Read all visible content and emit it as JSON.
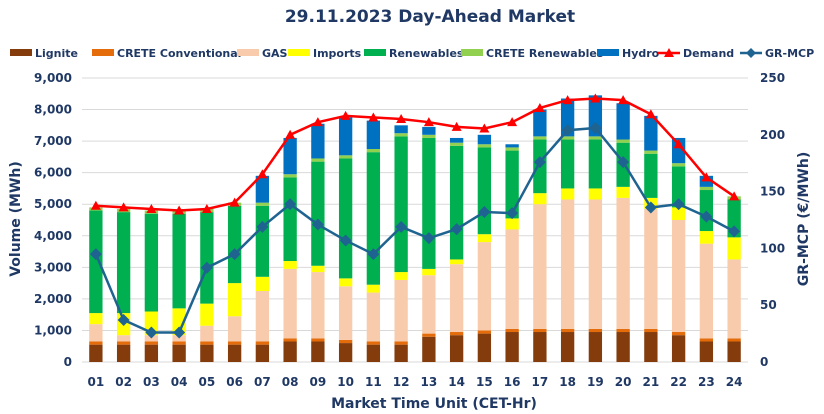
{
  "chart_data": {
    "type": "bar",
    "title": "29.11.2023  Day-Ahead Market",
    "xlabel": "Market Time Unit (CET-Hr)",
    "ylabel": "Volume (MWh)",
    "y2label": "GR-MCP (€/MWh)",
    "ylim": [
      0,
      9000
    ],
    "y2lim": [
      0,
      250
    ],
    "yticks": [
      "0",
      "1,000",
      "2,000",
      "3,000",
      "4,000",
      "5,000",
      "6,000",
      "7,000",
      "8,000",
      "9,000"
    ],
    "y2ticks": [
      "0",
      "50",
      "100",
      "150",
      "200",
      "250"
    ],
    "categories": [
      "01",
      "02",
      "03",
      "04",
      "05",
      "06",
      "07",
      "08",
      "09",
      "10",
      "11",
      "12",
      "13",
      "14",
      "15",
      "16",
      "17",
      "18",
      "19",
      "20",
      "21",
      "22",
      "23",
      "24"
    ],
    "series": [
      {
        "name": "Lignite",
        "kind": "bar",
        "color": "#843c0c",
        "values": [
          550,
          550,
          550,
          550,
          550,
          550,
          550,
          650,
          650,
          600,
          550,
          550,
          800,
          850,
          900,
          950,
          950,
          950,
          950,
          950,
          950,
          850,
          650,
          650
        ]
      },
      {
        "name": "CRETE Conventional",
        "kind": "bar",
        "color": "#e46c0a",
        "values": [
          100,
          100,
          100,
          100,
          100,
          100,
          100,
          100,
          100,
          100,
          100,
          100,
          100,
          100,
          100,
          100,
          100,
          100,
          100,
          100,
          100,
          100,
          100,
          100
        ]
      },
      {
        "name": "GAS",
        "kind": "bar",
        "color": "#f8cbad",
        "values": [
          550,
          200,
          200,
          200,
          500,
          800,
          1600,
          2200,
          2100,
          1700,
          1550,
          1950,
          1850,
          2150,
          2800,
          3150,
          3950,
          4100,
          4100,
          4150,
          3800,
          3550,
          3000,
          2500
        ]
      },
      {
        "name": "Imports",
        "kind": "bar",
        "color": "#ffff00",
        "values": [
          350,
          700,
          750,
          850,
          700,
          1050,
          450,
          250,
          200,
          250,
          250,
          250,
          200,
          150,
          250,
          350,
          350,
          350,
          350,
          350,
          350,
          400,
          400,
          700
        ]
      },
      {
        "name": "Renewables",
        "kind": "bar",
        "color": "#00b050",
        "values": [
          3250,
          3200,
          3100,
          3000,
          2900,
          2450,
          2250,
          2650,
          3300,
          3800,
          4200,
          4300,
          4150,
          3600,
          2750,
          2150,
          1700,
          1550,
          1550,
          1400,
          1400,
          1300,
          1300,
          1200
        ]
      },
      {
        "name": "CRETE Renewables",
        "kind": "bar",
        "color": "#92d050",
        "values": [
          100,
          100,
          100,
          100,
          100,
          100,
          100,
          100,
          100,
          100,
          100,
          100,
          100,
          100,
          100,
          100,
          100,
          100,
          100,
          100,
          100,
          100,
          100,
          100
        ]
      },
      {
        "name": "Hydro",
        "kind": "bar",
        "color": "#0070c0",
        "values": [
          0,
          0,
          0,
          0,
          0,
          0,
          850,
          1150,
          1100,
          1200,
          900,
          250,
          250,
          150,
          300,
          100,
          850,
          1200,
          1300,
          1150,
          1100,
          800,
          350,
          0
        ]
      },
      {
        "name": "Demand",
        "kind": "line",
        "axis": "left",
        "color": "#ff0000",
        "marker": "triangle",
        "values": [
          4950,
          4900,
          4850,
          4800,
          4850,
          5050,
          5950,
          7200,
          7600,
          7800,
          7750,
          7700,
          7600,
          7450,
          7400,
          7600,
          8050,
          8300,
          8350,
          8300,
          7850,
          6900,
          5850,
          5250
        ]
      },
      {
        "name": "GR-MCP",
        "kind": "line",
        "axis": "right",
        "color": "#1f6391",
        "marker": "diamond",
        "values": [
          95,
          37,
          26,
          26,
          83,
          95,
          119,
          139,
          121,
          107,
          95,
          119,
          109,
          117,
          132,
          131,
          176,
          204,
          206,
          176,
          136,
          139,
          128,
          115
        ]
      }
    ],
    "legend_position": "top"
  }
}
